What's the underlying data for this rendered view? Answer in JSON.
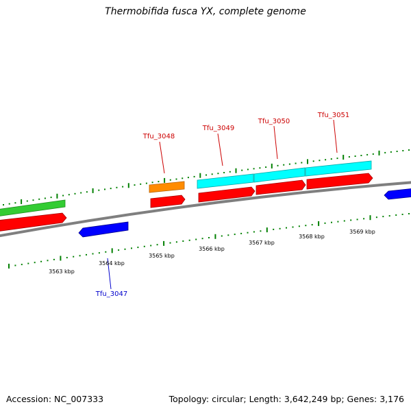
{
  "title": "Thermobifida fusca YX, complete genome",
  "accession": "Accession: NC_007333",
  "topology": "Topology: circular; Length: 3,642,249 bp; Genes: 3,176",
  "colors": {
    "cds": "#ff0000",
    "minus": "#0000ff",
    "green": "#33cc33",
    "orange": "#ff8c00",
    "cyan": "#00ffff",
    "backbone": "#808080",
    "ticks": "#008000"
  },
  "scale_labels": [
    "3563 kbp",
    "3564 kbp",
    "3565 kbp",
    "3566 kbp",
    "3567 kbp",
    "3568 kbp",
    "3569 kbp"
  ],
  "gene_labels": [
    {
      "name": "Tfu_3047",
      "strand": "minus"
    },
    {
      "name": "Tfu_3048",
      "strand": "plus"
    },
    {
      "name": "Tfu_3049",
      "strand": "plus"
    },
    {
      "name": "Tfu_3050",
      "strand": "plus"
    },
    {
      "name": "Tfu_3051",
      "strand": "plus"
    }
  ]
}
